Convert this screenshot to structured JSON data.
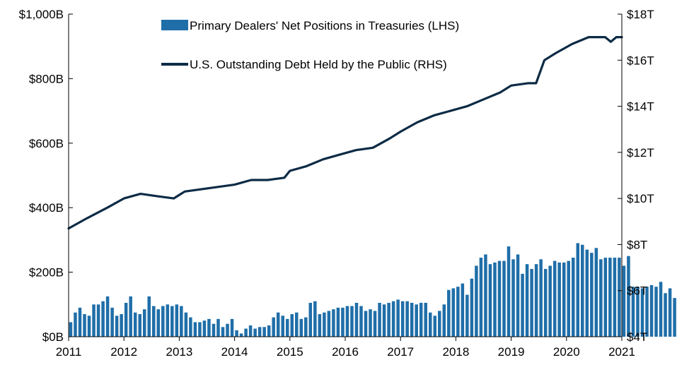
{
  "chart_data": {
    "type": "bar+line",
    "title": "",
    "x_axis": {
      "tick_labels": [
        "2011",
        "2012",
        "2013",
        "2014",
        "2015",
        "2016",
        "2017",
        "2018",
        "2019",
        "2020",
        "2021"
      ],
      "range": [
        2011,
        2021
      ]
    },
    "left_axis": {
      "tick_labels": [
        "$0B",
        "$200B",
        "$400B",
        "$600B",
        "$800B",
        "$1,000B"
      ],
      "range": [
        0,
        1000
      ],
      "unit": "billions USD"
    },
    "right_axis": {
      "tick_labels": [
        "$4T",
        "$6T",
        "$8T",
        "$10T",
        "$12T",
        "$14T",
        "$16T",
        "$18T"
      ],
      "range": [
        4,
        18
      ],
      "unit": "trillions USD"
    },
    "legend": {
      "placement": "top-center",
      "items": [
        {
          "label": "Primary Dealers' Net Positions in Treasuries (LHS)",
          "kind": "bar"
        },
        {
          "label": "U.S. Outstanding Debt Held by the Public (RHS)",
          "kind": "line"
        }
      ]
    },
    "colors": {
      "bar": "#1f6ea8",
      "line": "#0d2b45"
    },
    "grid": false,
    "bars": {
      "name": "Primary Dealers' Net Positions in Treasuries (LHS)",
      "axis": "left",
      "start": 2011.0,
      "step_years": 0.08333,
      "values": [
        45,
        75,
        90,
        70,
        65,
        100,
        100,
        110,
        125,
        90,
        65,
        70,
        105,
        125,
        75,
        70,
        85,
        125,
        95,
        85,
        95,
        100,
        95,
        100,
        95,
        75,
        60,
        45,
        45,
        50,
        55,
        40,
        55,
        30,
        40,
        55,
        20,
        10,
        25,
        35,
        25,
        30,
        30,
        35,
        60,
        75,
        65,
        55,
        70,
        75,
        55,
        60,
        105,
        110,
        70,
        75,
        80,
        85,
        90,
        90,
        95,
        95,
        105,
        95,
        80,
        85,
        80,
        105,
        100,
        105,
        110,
        115,
        110,
        110,
        105,
        100,
        105,
        105,
        75,
        65,
        80,
        100,
        145,
        150,
        155,
        165,
        130,
        180,
        220,
        245,
        255,
        225,
        230,
        235,
        235,
        280,
        240,
        255,
        195,
        225,
        210,
        225,
        240,
        210,
        220,
        235,
        230,
        230,
        235,
        245,
        290,
        285,
        270,
        260,
        275,
        240,
        245,
        245,
        245,
        245,
        220,
        250,
        155,
        155,
        150,
        155,
        160,
        155,
        170,
        135,
        150,
        120
      ]
    },
    "line": {
      "name": "U.S. Outstanding Debt Held by the Public (RHS)",
      "axis": "right",
      "x": [
        2011.0,
        2011.3,
        2011.7,
        2012.0,
        2012.3,
        2012.6,
        2012.9,
        2013.1,
        2013.4,
        2013.7,
        2014.0,
        2014.3,
        2014.6,
        2014.9,
        2015.0,
        2015.3,
        2015.6,
        2015.9,
        2016.2,
        2016.5,
        2016.8,
        2017.0,
        2017.3,
        2017.6,
        2017.9,
        2018.2,
        2018.5,
        2018.8,
        2019.0,
        2019.3,
        2019.45,
        2019.6,
        2019.8,
        2020.1,
        2020.4,
        2020.7,
        2020.8,
        2020.9,
        2021.0
      ],
      "values": [
        8.7,
        9.1,
        9.6,
        10.0,
        10.2,
        10.1,
        10.0,
        10.3,
        10.4,
        10.5,
        10.6,
        10.8,
        10.8,
        10.9,
        11.2,
        11.4,
        11.7,
        11.9,
        12.1,
        12.2,
        12.6,
        12.9,
        13.3,
        13.6,
        13.8,
        14.0,
        14.3,
        14.6,
        14.9,
        15.0,
        15.0,
        16.0,
        16.3,
        16.7,
        17.0,
        17.0,
        16.8,
        17.0,
        17.0
      ]
    }
  }
}
